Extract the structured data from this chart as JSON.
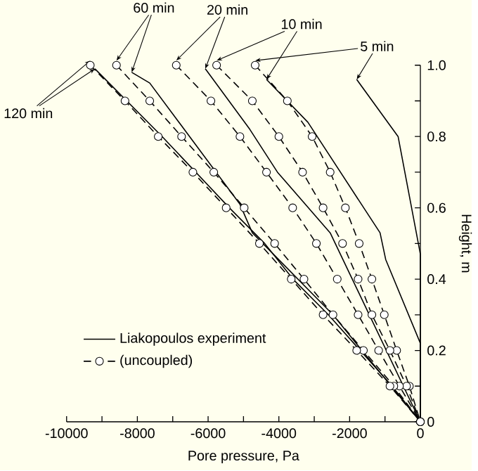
{
  "chart_data": {
    "type": "line",
    "xlabel": "Pore pressure, Pa",
    "ylabel": "Height, m",
    "xlim": [
      -10000,
      0
    ],
    "ylim": [
      0,
      1.0
    ],
    "xticks": [
      -10000,
      {
        "value": -9000,
        "label": null
      },
      -8000,
      {
        "value": -7000,
        "label": null
      },
      -6000,
      {
        "value": -5000,
        "label": null
      },
      -4000,
      {
        "value": -3000,
        "label": null
      },
      -2000,
      {
        "value": -1000,
        "label": null
      },
      0
    ],
    "yticks": [
      0,
      {
        "value": 0.1,
        "label": null
      },
      0.2,
      {
        "value": 0.3,
        "label": null
      },
      0.4,
      {
        "value": 0.5,
        "label": null
      },
      0.6,
      {
        "value": 0.7,
        "label": null
      },
      0.8,
      {
        "value": 0.9,
        "label": null
      },
      {
        "value": 1.0,
        "label": "1.0"
      }
    ],
    "legend": "bottom left",
    "grid": false,
    "series": [
      {
        "name": "Liakopoulos experiment",
        "color": "#000000",
        "line_style": "solid",
        "marker": "none",
        "x": [
          -1800,
          -630,
          0,
          0
        ],
        "values": [
          0.96,
          0.8,
          0.47,
          0
        ]
      },
      {
        "name": "(uncoupled)",
        "color": "#000000",
        "line_style": "dashed",
        "marker": "circle",
        "x": [
          -4670,
          -3760,
          -3060,
          -2550,
          -2120,
          -1730,
          -1370,
          -1020,
          -670,
          -310,
          0
        ],
        "values": [
          1.0,
          0.9,
          0.8,
          0.7,
          0.6,
          0.5,
          0.4,
          0.3,
          0.2,
          0.1,
          0
        ]
      },
      {
        "color": "#000000",
        "line_style": "solid",
        "marker": "none",
        "x": [
          -4350,
          -3180,
          -1140,
          -980,
          0,
          0
        ],
        "values": [
          0.96,
          0.84,
          0.53,
          0.455,
          0.22,
          0
        ]
      },
      {
        "color": "#000000",
        "line_style": "dashed",
        "marker": "circle",
        "x": [
          -5760,
          -4750,
          -4000,
          -3330,
          -2750,
          -2200,
          -1760,
          -1370,
          -860,
          -390,
          0
        ],
        "values": [
          1.0,
          0.9,
          0.8,
          0.7,
          0.6,
          0.5,
          0.4,
          0.3,
          0.2,
          0.1,
          0
        ]
      },
      {
        "color": "#000000",
        "line_style": "solid",
        "marker": "none",
        "x": [
          -6080,
          -4820,
          -4040,
          -2550,
          0
        ],
        "values": [
          0.99,
          0.82,
          0.7,
          0.53,
          0
        ]
      },
      {
        "color": "#000000",
        "line_style": "dashed",
        "marker": "circle",
        "x": [
          -6900,
          -5920,
          -5100,
          -4350,
          -3610,
          -2940,
          -2350,
          -1760,
          -1180,
          -590,
          0
        ],
        "values": [
          1.0,
          0.9,
          0.8,
          0.7,
          0.6,
          0.5,
          0.4,
          0.3,
          0.2,
          0.1,
          0
        ]
      },
      {
        "color": "#000000",
        "line_style": "solid",
        "marker": "none",
        "x": [
          -8160,
          -7650,
          -5100,
          -4750,
          -2470,
          -1650,
          0
        ],
        "values": [
          0.98,
          0.95,
          0.61,
          0.53,
          0.3,
          0.2,
          0
        ]
      },
      {
        "color": "#000000",
        "line_style": "dashed",
        "marker": "circle",
        "x": [
          -8590,
          -7650,
          -6750,
          -5840,
          -4980,
          -4120,
          -3290,
          -2470,
          -1610,
          -750,
          0
        ],
        "values": [
          1.0,
          0.9,
          0.8,
          0.7,
          0.6,
          0.5,
          0.4,
          0.3,
          0.2,
          0.1,
          0
        ]
      },
      {
        "color": "#000000",
        "line_style": "solid",
        "marker": "none",
        "x": [
          -9200,
          -7300,
          -5400,
          -4400,
          -3600,
          -2600,
          -1700,
          -800,
          0
        ],
        "values": [
          0.99,
          0.8,
          0.6,
          0.5,
          0.4,
          0.3,
          0.2,
          0.1,
          0
        ]
      },
      {
        "color": "#000000",
        "line_style": "dashed",
        "marker": "circle",
        "x": [
          -9330,
          -8350,
          -7410,
          -6430,
          -5490,
          -4550,
          -3650,
          -2750,
          -1800,
          -860,
          0
        ],
        "values": [
          1.0,
          0.9,
          0.8,
          0.7,
          0.6,
          0.5,
          0.4,
          0.3,
          0.2,
          0.1,
          0
        ]
      }
    ],
    "annotations": [
      {
        "text": "5 min",
        "x": -1800,
        "y": 0.96
      },
      {
        "text": "10 min",
        "x": -4350,
        "y": 0.96
      },
      {
        "text": "20 min",
        "x": -6080,
        "y": 0.99
      },
      {
        "text": "60 min",
        "x": -8160,
        "y": 0.98
      },
      {
        "text": "120 min",
        "x": -9200,
        "y": 0.99
      }
    ]
  }
}
